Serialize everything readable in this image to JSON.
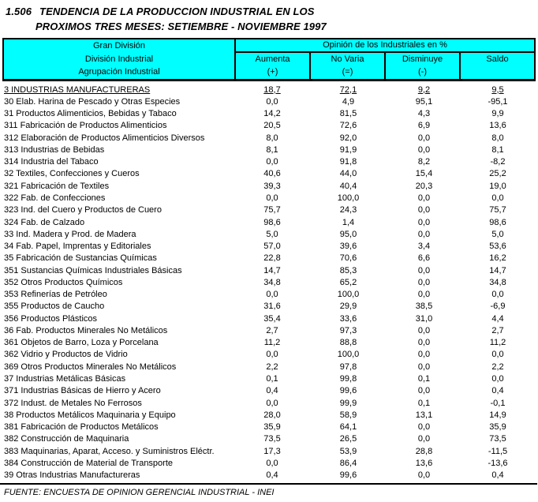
{
  "title": {
    "index": "1.506",
    "line1": "TENDENCIA DE LA PRODUCCION INDUSTRIAL EN LOS",
    "line2": "PROXIMOS TRES MESES: SETIEMBRE - NOVIEMBRE 1997"
  },
  "colors": {
    "header_bg": "#00ffff",
    "border": "#000000",
    "text": "#000000"
  },
  "table": {
    "row_header": {
      "line1": "Gran División",
      "line2": "División Industrial",
      "line3": "Agrupación Industrial"
    },
    "opinion_header": "Opinión de los Industriales en %",
    "columns": [
      {
        "label": "Aumenta",
        "symbol": "(+)"
      },
      {
        "label": "No Varia",
        "symbol": "(=)"
      },
      {
        "label": "Disminuye",
        "symbol": "(-)"
      },
      {
        "label": "Saldo",
        "symbol": ""
      }
    ],
    "rows": [
      {
        "name": "3 INDUSTRIAS MANUFACTURERAS",
        "aumenta": "18,7",
        "no_varia": "72,1",
        "disminuye": "9,2",
        "saldo": "9,5",
        "emphasis": true
      },
      {
        "name": "30 Elab. Harina de Pescado y Otras Especies",
        "aumenta": "0,0",
        "no_varia": "4,9",
        "disminuye": "95,1",
        "saldo": "-95,1",
        "emphasis": false
      },
      {
        "name": "31 Productos Alimenticios, Bebidas y Tabaco",
        "aumenta": "14,2",
        "no_varia": "81,5",
        "disminuye": "4,3",
        "saldo": "9,9",
        "emphasis": false
      },
      {
        "name": "311 Fabricación de Productos Alimenticios",
        "aumenta": "20,5",
        "no_varia": "72,6",
        "disminuye": "6,9",
        "saldo": "13,6",
        "emphasis": false
      },
      {
        "name": "312 Elaboración de Productos Alimenticios Diversos",
        "aumenta": "8,0",
        "no_varia": "92,0",
        "disminuye": "0,0",
        "saldo": "8,0",
        "emphasis": false
      },
      {
        "name": "313 Industrias de Bebidas",
        "aumenta": "8,1",
        "no_varia": "91,9",
        "disminuye": "0,0",
        "saldo": "8,1",
        "emphasis": false
      },
      {
        "name": "314 Industria del Tabaco",
        "aumenta": "0,0",
        "no_varia": "91,8",
        "disminuye": "8,2",
        "saldo": "-8,2",
        "emphasis": false
      },
      {
        "name": "32 Textiles, Confecciones y Cueros",
        "aumenta": "40,6",
        "no_varia": "44,0",
        "disminuye": "15,4",
        "saldo": "25,2",
        "emphasis": false
      },
      {
        "name": "321 Fabricación de Textiles",
        "aumenta": "39,3",
        "no_varia": "40,4",
        "disminuye": "20,3",
        "saldo": "19,0",
        "emphasis": false
      },
      {
        "name": "322 Fab. de Confecciones",
        "aumenta": "0,0",
        "no_varia": "100,0",
        "disminuye": "0,0",
        "saldo": "0,0",
        "emphasis": false
      },
      {
        "name": "323 Ind. del Cuero y Productos de Cuero",
        "aumenta": "75,7",
        "no_varia": "24,3",
        "disminuye": "0,0",
        "saldo": "75,7",
        "emphasis": false
      },
      {
        "name": "324 Fab. de Calzado",
        "aumenta": "98,6",
        "no_varia": "1,4",
        "disminuye": "0,0",
        "saldo": "98,6",
        "emphasis": false
      },
      {
        "name": "33 Ind. Madera y Prod. de Madera",
        "aumenta": "5,0",
        "no_varia": "95,0",
        "disminuye": "0,0",
        "saldo": "5,0",
        "emphasis": false
      },
      {
        "name": "34 Fab. Papel, Imprentas y Editoriales",
        "aumenta": "57,0",
        "no_varia": "39,6",
        "disminuye": "3,4",
        "saldo": "53,6",
        "emphasis": false
      },
      {
        "name": "35 Fabricación de Sustancias Químicas",
        "aumenta": "22,8",
        "no_varia": "70,6",
        "disminuye": "6,6",
        "saldo": "16,2",
        "emphasis": false
      },
      {
        "name": "351 Sustancias Químicas Industriales Básicas",
        "aumenta": "14,7",
        "no_varia": "85,3",
        "disminuye": "0,0",
        "saldo": "14,7",
        "emphasis": false
      },
      {
        "name": "352 Otros Productos Químicos",
        "aumenta": "34,8",
        "no_varia": "65,2",
        "disminuye": "0,0",
        "saldo": "34,8",
        "emphasis": false
      },
      {
        "name": "353 Refinerías de Petróleo",
        "aumenta": "0,0",
        "no_varia": "100,0",
        "disminuye": "0,0",
        "saldo": "0,0",
        "emphasis": false
      },
      {
        "name": "355 Productos de Caucho",
        "aumenta": "31,6",
        "no_varia": "29,9",
        "disminuye": "38,5",
        "saldo": "-6,9",
        "emphasis": false
      },
      {
        "name": "356 Productos Plásticos",
        "aumenta": "35,4",
        "no_varia": "33,6",
        "disminuye": "31,0",
        "saldo": "4,4",
        "emphasis": false
      },
      {
        "name": "36 Fab. Productos Minerales No Metálicos",
        "aumenta": "2,7",
        "no_varia": "97,3",
        "disminuye": "0,0",
        "saldo": "2,7",
        "emphasis": false
      },
      {
        "name": "361 Objetos de Barro, Loza y Porcelana",
        "aumenta": "11,2",
        "no_varia": "88,8",
        "disminuye": "0,0",
        "saldo": "11,2",
        "emphasis": false
      },
      {
        "name": "362 Vidrio y Productos de Vidrio",
        "aumenta": "0,0",
        "no_varia": "100,0",
        "disminuye": "0,0",
        "saldo": "0,0",
        "emphasis": false
      },
      {
        "name": "369 Otros Productos Minerales No Metálicos",
        "aumenta": "2,2",
        "no_varia": "97,8",
        "disminuye": "0,0",
        "saldo": "2,2",
        "emphasis": false
      },
      {
        "name": "37 Industrias Metálicas Básicas",
        "aumenta": "0,1",
        "no_varia": "99,8",
        "disminuye": "0,1",
        "saldo": "0,0",
        "emphasis": false
      },
      {
        "name": "371 Industrias Básicas de Hierro y Acero",
        "aumenta": "0,4",
        "no_varia": "99,6",
        "disminuye": "0,0",
        "saldo": "0,4",
        "emphasis": false
      },
      {
        "name": "372 Indust. de Metales No Ferrosos",
        "aumenta": "0,0",
        "no_varia": "99,9",
        "disminuye": "0,1",
        "saldo": "-0,1",
        "emphasis": false
      },
      {
        "name": "38 Productos Metálicos Maquinaria y Equipo",
        "aumenta": "28,0",
        "no_varia": "58,9",
        "disminuye": "13,1",
        "saldo": "14,9",
        "emphasis": false
      },
      {
        "name": "381 Fabricación de Productos Metálicos",
        "aumenta": "35,9",
        "no_varia": "64,1",
        "disminuye": "0,0",
        "saldo": "35,9",
        "emphasis": false
      },
      {
        "name": "382 Construcción de Maquinaria",
        "aumenta": "73,5",
        "no_varia": "26,5",
        "disminuye": "0,0",
        "saldo": "73,5",
        "emphasis": false
      },
      {
        "name": "383 Maquinarias, Aparat, Acceso. y Suministros Eléctr.",
        "aumenta": "17,3",
        "no_varia": "53,9",
        "disminuye": "28,8",
        "saldo": "-11,5",
        "emphasis": false
      },
      {
        "name": "384 Construcción de Material de Transporte",
        "aumenta": "0,0",
        "no_varia": "86,4",
        "disminuye": "13,6",
        "saldo": "-13,6",
        "emphasis": false
      },
      {
        "name": "39 Otras Industrias Manufactureras",
        "aumenta": "0,4",
        "no_varia": "99,6",
        "disminuye": "0,0",
        "saldo": "0,4",
        "emphasis": false
      }
    ]
  },
  "footer": {
    "source": "FUENTE: ENCUESTA DE OPINION GERENCIAL INDUSTRIAL - INEI"
  }
}
